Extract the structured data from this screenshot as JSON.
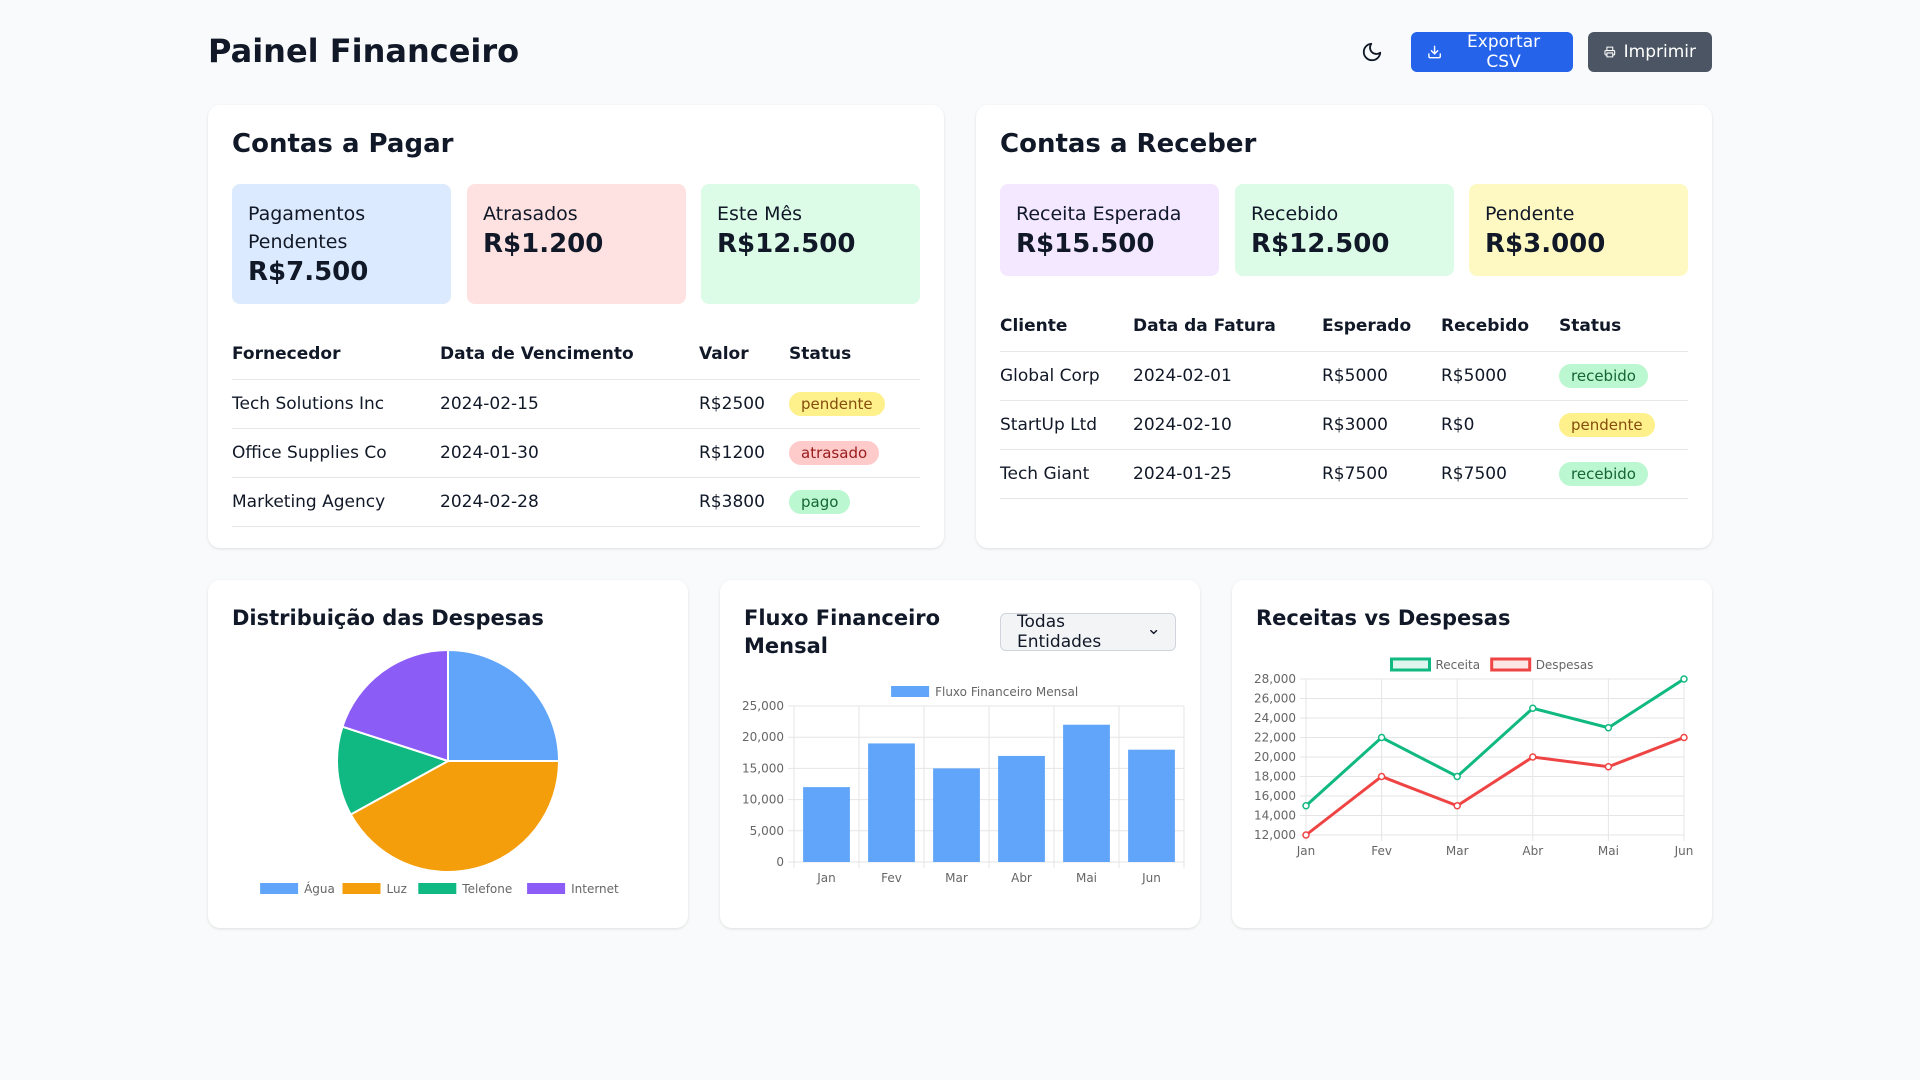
{
  "header": {
    "title": "Painel Financeiro",
    "export_label": "Exportar CSV",
    "print_label": "Imprimir"
  },
  "payables": {
    "title": "Contas a Pagar",
    "stats": [
      {
        "label": "Pagamentos Pendentes",
        "value": "R$7.500",
        "color": "#dbeafe"
      },
      {
        "label": "Atrasados",
        "value": "R$1.200",
        "color": "#fee2e2"
      },
      {
        "label": "Este Mês",
        "value": "R$12.500",
        "color": "#dcfce7"
      }
    ],
    "columns": [
      "Fornecedor",
      "Data de Vencimento",
      "Valor",
      "Status"
    ],
    "rows": [
      {
        "vendor": "Tech Solutions Inc",
        "due": "2024-02-15",
        "amount": "R$2500",
        "status": "pendente"
      },
      {
        "vendor": "Office Supplies Co",
        "due": "2024-01-30",
        "amount": "R$1200",
        "status": "atrasado"
      },
      {
        "vendor": "Marketing Agency",
        "due": "2024-02-28",
        "amount": "R$3800",
        "status": "pago"
      }
    ]
  },
  "receivables": {
    "title": "Contas a Receber",
    "stats": [
      {
        "label": "Receita Esperada",
        "value": "R$15.500",
        "color": "#f3e8ff"
      },
      {
        "label": "Recebido",
        "value": "R$12.500",
        "color": "#dcfce7"
      },
      {
        "label": "Pendente",
        "value": "R$3.000",
        "color": "#fef9c3"
      }
    ],
    "columns": [
      "Cliente",
      "Data da Fatura",
      "Esperado",
      "Recebido",
      "Status"
    ],
    "rows": [
      {
        "client": "Global Corp",
        "date": "2024-02-01",
        "expected": "R$5000",
        "received": "R$5000",
        "status": "recebido"
      },
      {
        "client": "StartUp Ltd",
        "date": "2024-02-10",
        "expected": "R$3000",
        "received": "R$0",
        "status": "pendente"
      },
      {
        "client": "Tech Giant",
        "date": "2024-01-25",
        "expected": "R$7500",
        "received": "R$7500",
        "status": "recebido"
      }
    ]
  },
  "charts": {
    "pie_title": "Distribuição das Despesas",
    "bar_title": "Fluxo Financeiro Mensal",
    "bar_select": "Todas Entidades",
    "line_title": "Receitas vs Despesas"
  },
  "chart_data": [
    {
      "type": "pie",
      "title": "Distribuição das Despesas",
      "categories": [
        "Água",
        "Luz",
        "Telefone",
        "Internet"
      ],
      "values": [
        25,
        42,
        13,
        20
      ],
      "colors": [
        "#60a5fa",
        "#f59e0b",
        "#10b981",
        "#8b5cf6"
      ],
      "legend": "bottom"
    },
    {
      "type": "bar",
      "title": "Fluxo Financeiro Mensal",
      "categories": [
        "Jan",
        "Fev",
        "Mar",
        "Abr",
        "Mai",
        "Jun"
      ],
      "series": [
        {
          "name": "Fluxo Financeiro Mensal",
          "values": [
            12000,
            19000,
            15000,
            17000,
            22000,
            18000
          ],
          "color": "#60a5fa"
        }
      ],
      "ylim": [
        0,
        25000
      ],
      "yticks": [
        "0",
        "5,000",
        "10,000",
        "15,000",
        "20,000",
        "25,000"
      ],
      "legend": "top"
    },
    {
      "type": "line",
      "title": "Receitas vs Despesas",
      "categories": [
        "Jan",
        "Fev",
        "Mar",
        "Abr",
        "Mai",
        "Jun"
      ],
      "series": [
        {
          "name": "Receita",
          "values": [
            15000,
            22000,
            18000,
            25000,
            23000,
            28000
          ],
          "color": "#10b981"
        },
        {
          "name": "Despesas",
          "values": [
            12000,
            18000,
            15000,
            20000,
            19000,
            22000
          ],
          "color": "#ef4444"
        }
      ],
      "ylim": [
        12000,
        28000
      ],
      "yticks": [
        "12,000",
        "14,000",
        "16,000",
        "18,000",
        "20,000",
        "22,000",
        "24,000",
        "26,000",
        "28,000"
      ],
      "legend": "top"
    }
  ]
}
